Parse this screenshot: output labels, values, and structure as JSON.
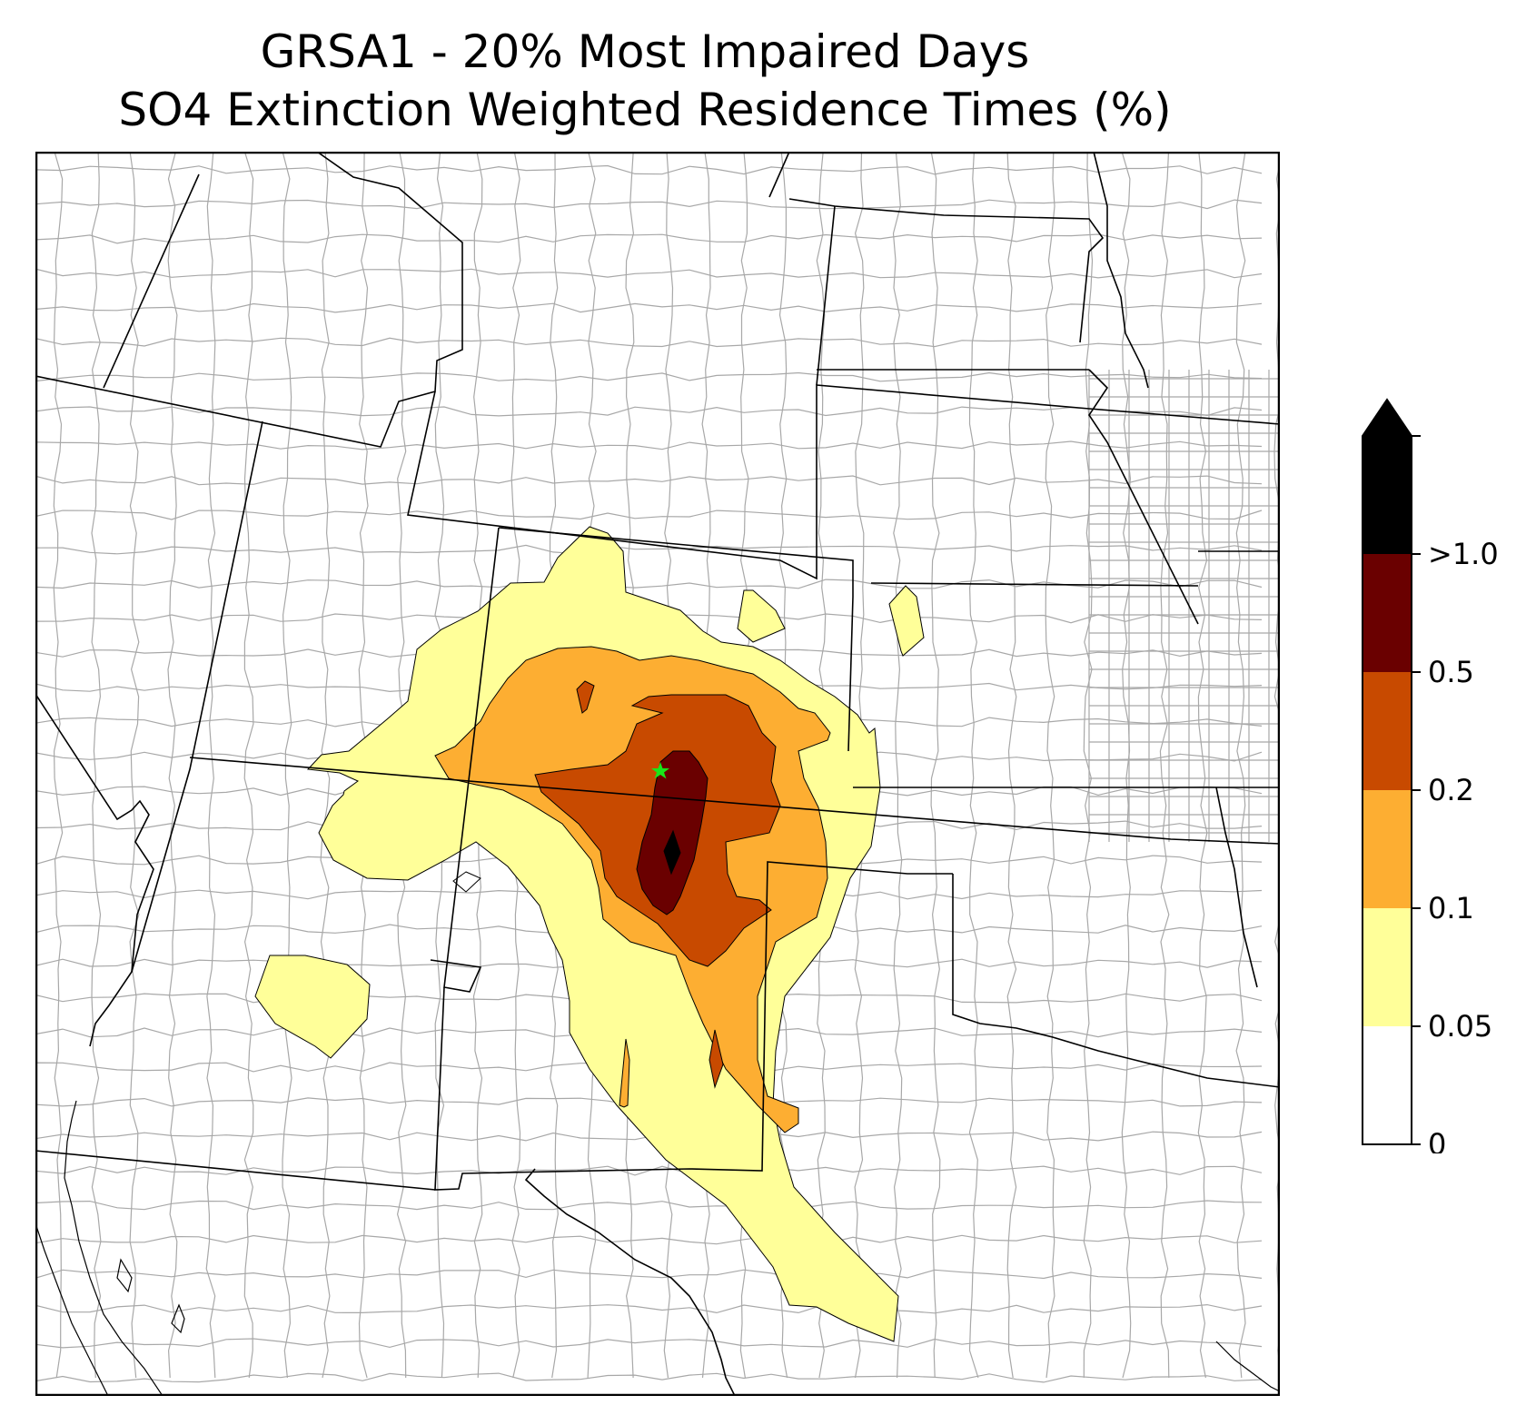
{
  "title": {
    "line1": "GRSA1 - 20% Most Impaired Days",
    "line2": "SO4 Extinction Weighted Residence Times (%)"
  },
  "colors": {
    "background": "#ffffff",
    "state_line": "#000000",
    "county_line": "#a8a8a8",
    "site_marker": "#19e619"
  },
  "colorbar": {
    "bins": [
      {
        "label": "0",
        "color": "#ffffff"
      },
      {
        "label": "0.05",
        "color": "#ffff99"
      },
      {
        "label": "0.1",
        "color": "#fdae32"
      },
      {
        "label": "0.2",
        "color": "#c84a00"
      },
      {
        "label": "0.5",
        "color": "#6a0000"
      },
      {
        "label": ">1.0",
        "color": "#000000"
      }
    ],
    "extend": "max"
  },
  "site": {
    "name": "GRSA1",
    "marker": "star-icon"
  }
}
